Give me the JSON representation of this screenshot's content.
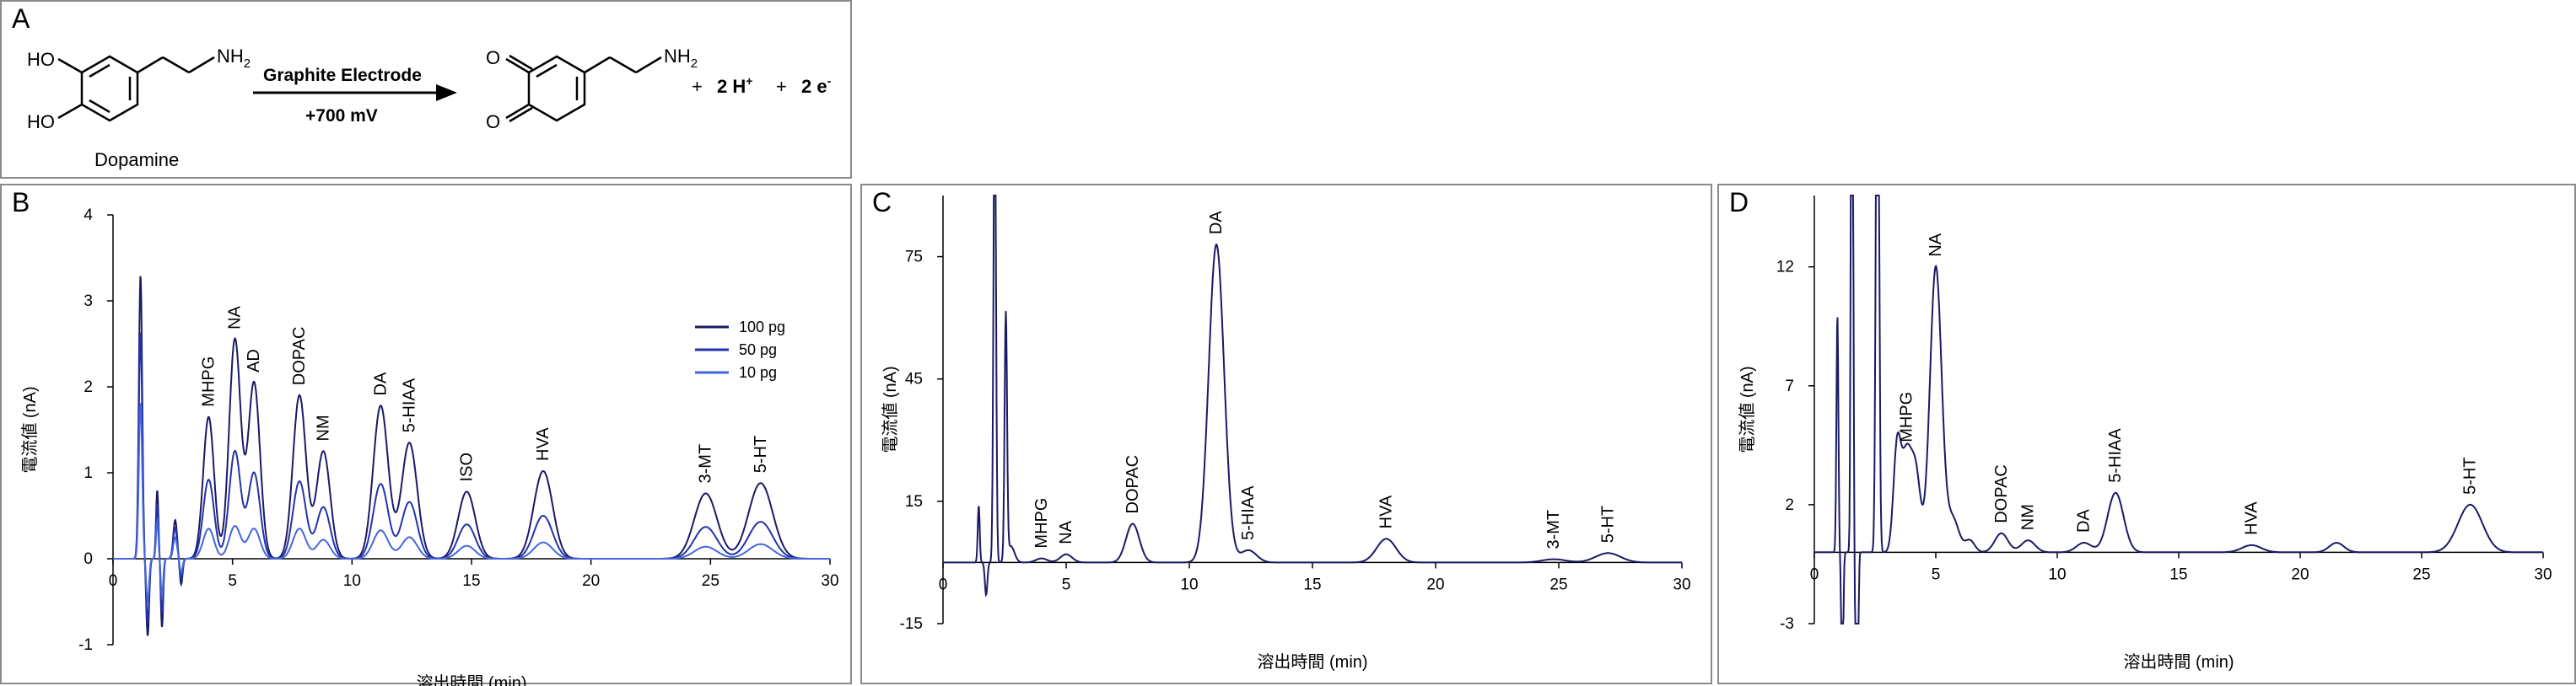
{
  "reaction": {
    "panel_label": "A",
    "reactant_name": "Dopamine",
    "oh1": "HO",
    "oh2": "HO",
    "nh2_left": "NH",
    "nh2_right": "NH",
    "nh2_sub": "2",
    "arrow_top": "Graphite Electrode",
    "arrow_bottom": "+700 mV",
    "o1": "O",
    "o2": "O",
    "products_plus1": "+",
    "protons": "2 H",
    "proton_sup": "+",
    "products_plus2": "+",
    "electrons": "2 e",
    "electron_sup": "-"
  },
  "chart_data": [
    {
      "panel": "B",
      "type": "line",
      "ylabel": "電流値 (nA)",
      "xlabel": "溶出時間 (min)",
      "xlim": [
        0,
        30
      ],
      "ylim": [
        -1,
        4
      ],
      "xticks": [
        0,
        5,
        10,
        15,
        20,
        25,
        30
      ],
      "yticks": [
        -1,
        0,
        1,
        2,
        3,
        4
      ],
      "legend_position": "upper-right",
      "legend": [
        "100 pg",
        "50 pg",
        "10 pg"
      ],
      "colors": [
        "#1a1a66",
        "#2233aa",
        "#4466dd"
      ],
      "peaks": [
        {
          "label": "MHPG",
          "x": 4.0,
          "heights": [
            1.65,
            0.92,
            0.35
          ]
        },
        {
          "label": "NA",
          "x": 5.1,
          "heights": [
            2.55,
            1.25,
            0.38
          ]
        },
        {
          "label": "AD",
          "x": 5.9,
          "heights": [
            2.05,
            1.0,
            0.35
          ]
        },
        {
          "label": "DOPAC",
          "x": 7.8,
          "heights": [
            1.9,
            0.9,
            0.35
          ]
        },
        {
          "label": "NM",
          "x": 8.8,
          "heights": [
            1.25,
            0.6,
            0.22
          ]
        },
        {
          "label": "DA",
          "x": 11.2,
          "heights": [
            1.78,
            0.87,
            0.33
          ]
        },
        {
          "label": "5-HIAA",
          "x": 12.4,
          "heights": [
            1.35,
            0.66,
            0.25
          ]
        },
        {
          "label": "ISO",
          "x": 14.8,
          "heights": [
            0.78,
            0.4,
            0.15
          ]
        },
        {
          "label": "HVA",
          "x": 18.0,
          "heights": [
            1.02,
            0.5,
            0.19
          ]
        },
        {
          "label": "3-MT",
          "x": 24.8,
          "heights": [
            0.76,
            0.37,
            0.14
          ]
        },
        {
          "label": "5-HT",
          "x": 27.1,
          "heights": [
            0.88,
            0.43,
            0.17
          ]
        }
      ]
    },
    {
      "panel": "C",
      "type": "line",
      "ylabel": "電流値 (nA)",
      "xlabel": "溶出時間 (min)",
      "xlim": [
        0,
        30
      ],
      "ylim": [
        -15,
        90
      ],
      "xticks": [
        0,
        5,
        10,
        15,
        20,
        25,
        30
      ],
      "yticks": [
        -15,
        15,
        45,
        75
      ],
      "colors": [
        "#1a1a66"
      ],
      "peaks": [
        {
          "label": "MHPG",
          "x": 4.0,
          "height": 1.0
        },
        {
          "label": "NA",
          "x": 5.0,
          "height": 2.0
        },
        {
          "label": "DOPAC",
          "x": 7.7,
          "height": 9.5
        },
        {
          "label": "DA",
          "x": 11.1,
          "height": 78.0
        },
        {
          "label": "5-HIAA",
          "x": 12.4,
          "height": 3.0
        },
        {
          "label": "HVA",
          "x": 18.0,
          "height": 5.8
        },
        {
          "label": "3-MT",
          "x": 24.8,
          "height": 0.8
        },
        {
          "label": "5-HT",
          "x": 27.0,
          "height": 2.3
        }
      ]
    },
    {
      "panel": "D",
      "type": "line",
      "ylabel": "電流値 (nA)",
      "xlabel": "溶出時間 (min)",
      "xlim": [
        0,
        30
      ],
      "ylim": [
        -3,
        15
      ],
      "xticks": [
        0,
        5,
        10,
        15,
        20,
        25,
        30
      ],
      "yticks": [
        -3,
        2,
        7,
        12
      ],
      "colors": [
        "#1a1a66"
      ],
      "peaks": [
        {
          "label": "MHPG",
          "x": 3.8,
          "height": 4.2
        },
        {
          "label": "NA",
          "x": 5.0,
          "height": 12.0
        },
        {
          "label": "DOPAC",
          "x": 7.7,
          "height": 0.8
        },
        {
          "label": "NM",
          "x": 8.8,
          "height": 0.5
        },
        {
          "label": "DA",
          "x": 11.1,
          "height": 0.4
        },
        {
          "label": "5-HIAA",
          "x": 12.4,
          "height": 2.5
        },
        {
          "label": "HVA",
          "x": 18.0,
          "height": 0.3
        },
        {
          "label": "5-HT",
          "x": 27.0,
          "height": 2.0
        }
      ]
    }
  ]
}
